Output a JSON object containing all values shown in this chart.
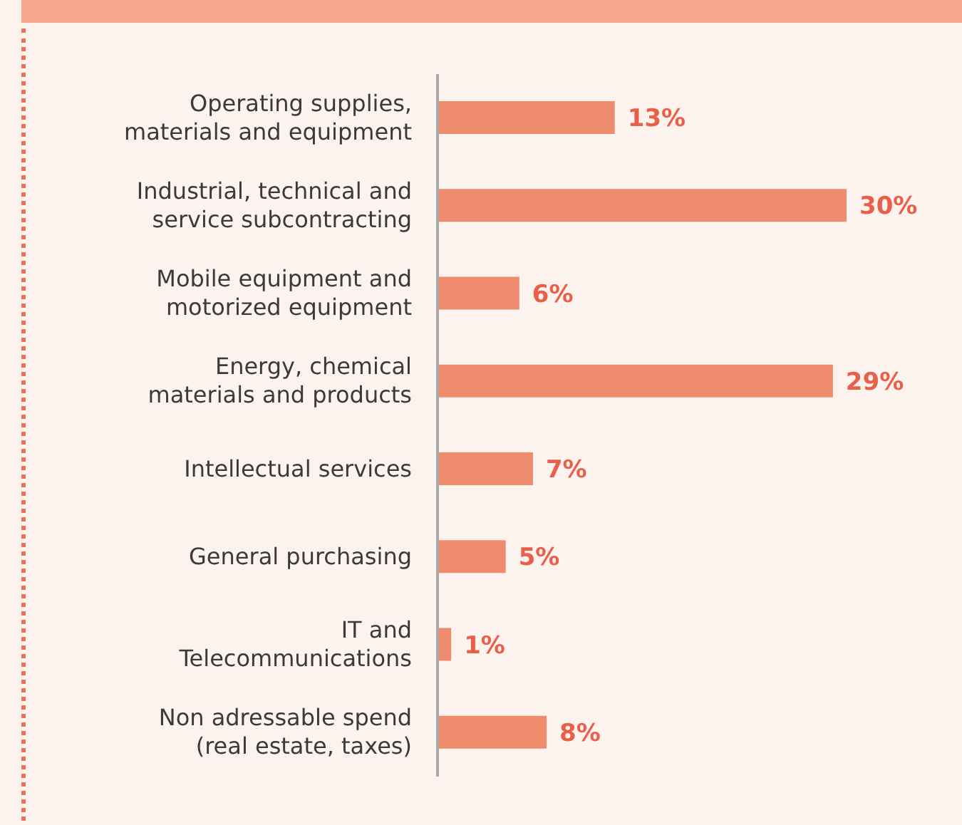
{
  "chart_data": {
    "type": "bar",
    "orientation": "horizontal",
    "categories": [
      "Operating supplies,\nmaterials and equipment",
      "Industrial, technical and\nservice subcontracting",
      "Mobile equipment and\nmotorized equipment",
      "Energy, chemical\nmaterials and products",
      "Intellectual services",
      "General purchasing",
      "IT and\nTelecommunications",
      "Non adressable spend\n(real estate, taxes)"
    ],
    "values": [
      13,
      30,
      6,
      29,
      7,
      5,
      1,
      8
    ],
    "value_labels": [
      "13%",
      "30%",
      "6%",
      "29%",
      "7%",
      "5%",
      "1%",
      "8%"
    ],
    "color": "#f08c6e"
  }
}
